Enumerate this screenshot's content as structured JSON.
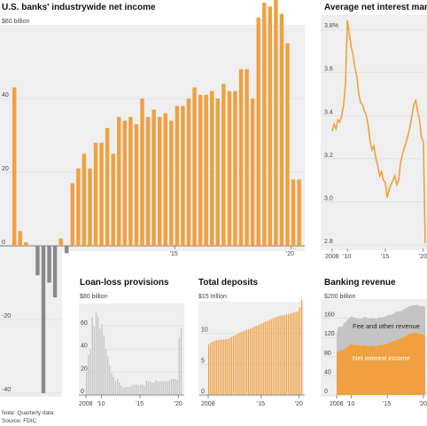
{
  "colors": {
    "orange": "#f0a040",
    "gray": "#999999",
    "dark_gray": "#8a8a8a",
    "light_gray": "#c4c4c4",
    "panel_bg": "#efefef",
    "grid": "#d8d8d8"
  },
  "chart_data": [
    {
      "id": "net_income",
      "type": "bar",
      "title": "U.S. banks' industrywide net income",
      "unit": "$60 billion",
      "y_ticks": [
        "40",
        "20",
        "0",
        "-20",
        "-40"
      ],
      "x_ticks": [
        "'15",
        "'20"
      ],
      "ylim": [
        -40,
        60
      ],
      "values": [
        43,
        4,
        1,
        0,
        -8,
        -40,
        -10,
        -14,
        2,
        -2,
        17,
        21,
        25,
        21,
        28,
        28,
        32,
        25,
        35,
        34,
        35,
        33,
        40,
        35,
        37,
        35,
        36,
        34,
        38,
        38,
        40,
        43,
        41,
        41,
        42,
        40,
        44,
        42,
        42,
        48,
        48,
        40,
        62,
        66,
        65,
        70,
        63,
        55,
        18,
        18
      ]
    },
    {
      "id": "nim",
      "type": "line",
      "title": "Average net interest margin",
      "y_ticks": [
        "3.8%",
        "3.6",
        "3.4",
        "3.2",
        "3.0",
        "2.8"
      ],
      "x_ticks": [
        "2008",
        "'10",
        "'15",
        "'20"
      ],
      "ylim": [
        2.8,
        3.85
      ],
      "x": [
        2008.0,
        2008.25,
        2008.5,
        2008.75,
        2009.0,
        2009.25,
        2009.5,
        2009.75,
        2010.0,
        2010.25,
        2010.5,
        2010.75,
        2011.0,
        2011.25,
        2011.5,
        2011.75,
        2012.0,
        2012.25,
        2012.5,
        2012.75,
        2013.0,
        2013.25,
        2013.5,
        2013.75,
        2014.0,
        2014.25,
        2014.5,
        2014.75,
        2015.0,
        2015.25,
        2015.5,
        2015.75,
        2016.0,
        2016.25,
        2016.5,
        2016.75,
        2017.0,
        2017.25,
        2017.5,
        2017.75,
        2018.0,
        2018.25,
        2018.5,
        2018.75,
        2019.0,
        2019.25,
        2019.5,
        2019.75,
        2020.0,
        2020.25
      ],
      "values": [
        3.33,
        3.36,
        3.34,
        3.38,
        3.37,
        3.4,
        3.45,
        3.55,
        3.84,
        3.78,
        3.72,
        3.68,
        3.62,
        3.58,
        3.5,
        3.46,
        3.45,
        3.42,
        3.4,
        3.35,
        3.28,
        3.24,
        3.26,
        3.2,
        3.17,
        3.12,
        3.14,
        3.1,
        3.09,
        3.02,
        3.06,
        3.08,
        3.1,
        3.12,
        3.08,
        3.1,
        3.18,
        3.22,
        3.25,
        3.28,
        3.31,
        3.35,
        3.4,
        3.45,
        3.47,
        3.42,
        3.38,
        3.3,
        3.28,
        2.81
      ]
    },
    {
      "id": "loan_loss",
      "type": "bar",
      "title": "Loan-loss provisions",
      "unit": "$80 billion",
      "y_ticks": [
        "60",
        "40",
        "20",
        "0"
      ],
      "x_ticks": [
        "2008",
        "'10",
        "'15",
        "'20"
      ],
      "ylim": [
        0,
        80
      ],
      "values": [
        20,
        35,
        40,
        68,
        60,
        72,
        68,
        58,
        62,
        52,
        40,
        34,
        26,
        19,
        16,
        12,
        14,
        11,
        8,
        6,
        7,
        7,
        7,
        8,
        9,
        9,
        9,
        8,
        9,
        9,
        8,
        13,
        12,
        12,
        11,
        11,
        13,
        12,
        12,
        12,
        12,
        12,
        12,
        13,
        14,
        14,
        14,
        13,
        50,
        58
      ]
    },
    {
      "id": "deposits",
      "type": "bar",
      "title": "Total deposits",
      "unit": "$15 trillion",
      "y_ticks": [
        "10",
        "5",
        "0"
      ],
      "x_ticks": [
        "2008",
        "'15",
        "'20"
      ],
      "ylim": [
        0,
        15
      ],
      "values": [
        8.2,
        8.5,
        8.6,
        8.8,
        8.9,
        8.9,
        9.0,
        9.0,
        9.0,
        9.1,
        9.1,
        9.2,
        9.4,
        9.6,
        9.7,
        9.9,
        10.1,
        10.2,
        10.3,
        10.5,
        10.6,
        10.7,
        10.8,
        10.9,
        11.1,
        11.2,
        11.3,
        11.5,
        11.6,
        11.8,
        11.9,
        12.0,
        12.2,
        12.3,
        12.5,
        12.6,
        12.7,
        12.8,
        12.9,
        12.9,
        13.0,
        13.1,
        13.1,
        13.2,
        13.3,
        13.4,
        13.5,
        13.6,
        14.2,
        15.5
      ]
    },
    {
      "id": "revenue",
      "type": "area",
      "title": "Banking revenue",
      "unit": "$200 billion",
      "y_ticks": [
        "160",
        "120",
        "80",
        "40",
        "0"
      ],
      "x_ticks": [
        "2008",
        "'10",
        "'15",
        "'20"
      ],
      "ylim": [
        0,
        200
      ],
      "series": [
        {
          "name": "Net interest income",
          "values": [
            88,
            90,
            92,
            94,
            95,
            98,
            100,
            103,
            106,
            105,
            104,
            105,
            104,
            103,
            102,
            104,
            103,
            102,
            101,
            102,
            103,
            102,
            101,
            103,
            104,
            105,
            104,
            106,
            107,
            109,
            110,
            112,
            113,
            114,
            116,
            118,
            119,
            121,
            123,
            125,
            127,
            128,
            129,
            130,
            130,
            129,
            128,
            127,
            126,
            125
          ]
        },
        {
          "name": "Fee and other revenue",
          "values": [
            40,
            52,
            50,
            48,
            55,
            54,
            57,
            58,
            58,
            58,
            57,
            56,
            55,
            56,
            57,
            58,
            60,
            58,
            58,
            58,
            57,
            58,
            57,
            59,
            58,
            57,
            58,
            58,
            58,
            58,
            57,
            57,
            58,
            60,
            58,
            57,
            56,
            57,
            58,
            57,
            58,
            58,
            58,
            57,
            58,
            58,
            57,
            58,
            60,
            60
          ]
        }
      ]
    }
  ],
  "note": "Note: Quarterly data",
  "source": "Source: FDIC"
}
